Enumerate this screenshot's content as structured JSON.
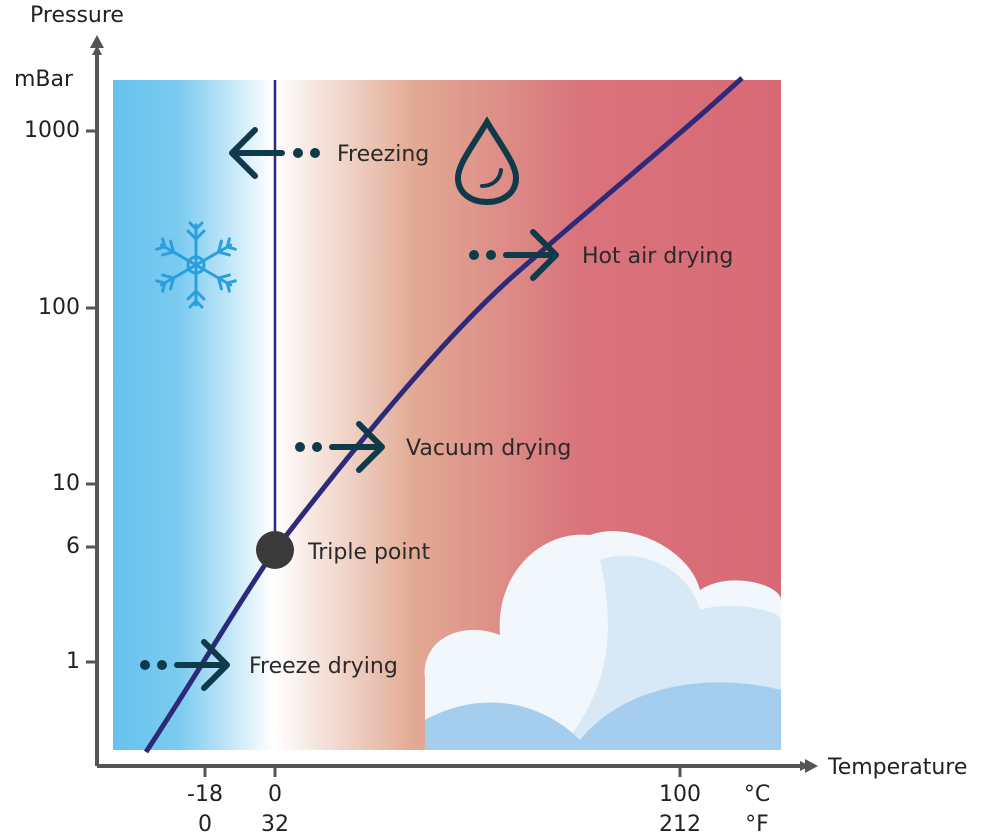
{
  "y_axis": {
    "title": "Pressure",
    "unit": "mBar",
    "ticks": [
      "1000",
      "100",
      "10",
      "6",
      "1"
    ]
  },
  "x_axis": {
    "title": "Temperature",
    "celsius": {
      "unit": "°C",
      "ticks": [
        "-18",
        "0",
        "100"
      ]
    },
    "fahrenheit": {
      "unit": "°F",
      "ticks": [
        "0",
        "32",
        "212"
      ]
    }
  },
  "annotations": {
    "freezing": "Freezing",
    "hot_air_drying": "Hot air drying",
    "vacuum_drying": "Vacuum drying",
    "triple_point": "Triple point",
    "freeze_drying": "Freeze drying"
  }
}
